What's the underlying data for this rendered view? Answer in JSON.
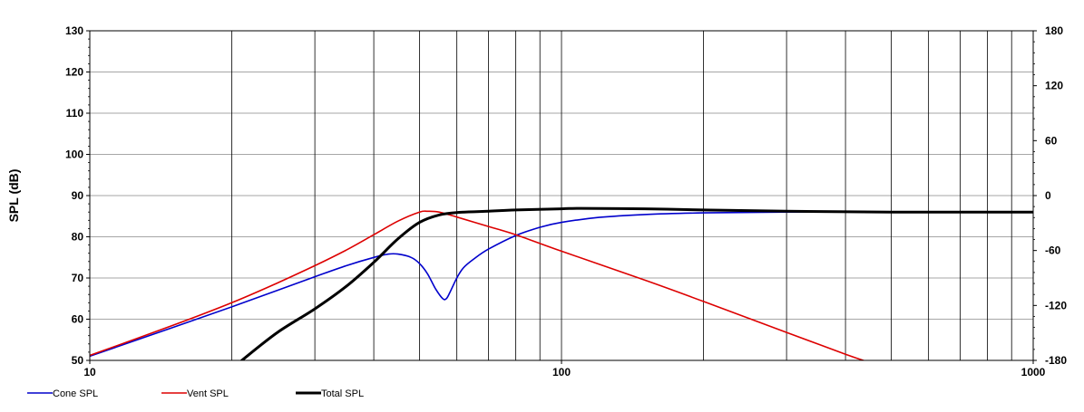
{
  "chart_data": {
    "type": "line",
    "title": "",
    "xlabel": "",
    "ylabel": "SPL (dB)",
    "y2label": "",
    "xscale": "log",
    "xlim": [
      10,
      1000
    ],
    "ylim": [
      50,
      130
    ],
    "y2lim": [
      -180,
      180
    ],
    "grid": true,
    "legend": "bottom-left",
    "x_tick_labels": [
      "10",
      "100",
      "1000"
    ],
    "y_ticks": [
      50,
      60,
      70,
      80,
      90,
      100,
      110,
      120,
      130
    ],
    "y2_ticks": [
      -180,
      -120,
      -60,
      0,
      60,
      120,
      180
    ],
    "series": [
      {
        "name": "Cone SPL",
        "color": "#0000cc",
        "x": [
          10,
          15,
          20,
          25,
          30,
          35,
          40,
          43,
          45,
          48,
          50,
          52,
          54,
          56,
          57,
          58,
          60,
          62,
          65,
          70,
          80,
          90,
          100,
          120,
          150,
          200,
          300,
          500,
          1000
        ],
        "y": [
          51,
          58,
          63,
          67,
          70.3,
          73,
          75,
          75.8,
          75.8,
          75,
          73.5,
          71,
          67.5,
          65,
          65,
          66.5,
          70,
          72.5,
          74.5,
          77,
          80.3,
          82.3,
          83.5,
          84.7,
          85.4,
          85.8,
          86,
          86,
          86
        ]
      },
      {
        "name": "Vent SPL",
        "color": "#dd0000",
        "x": [
          10,
          15,
          20,
          25,
          30,
          35,
          40,
          45,
          50,
          52,
          55,
          60,
          70,
          80,
          100,
          150,
          200,
          300,
          400,
          450
        ],
        "y": [
          51.2,
          58.5,
          64,
          68.8,
          73,
          76.8,
          80.5,
          83.8,
          86,
          86.2,
          86,
          84.8,
          82.5,
          80.5,
          76.5,
          69.5,
          64.3,
          56.8,
          51.5,
          49.5
        ]
      },
      {
        "name": "Total SPL",
        "color": "#000000",
        "x": [
          20,
          21,
          25,
          30,
          35,
          40,
          45,
          50,
          55,
          60,
          70,
          80,
          100,
          110,
          150,
          200,
          300,
          500,
          1000
        ],
        "y": [
          48,
          50,
          56.8,
          62.5,
          68,
          73.8,
          79.5,
          83.5,
          85.3,
          85.9,
          86.2,
          86.5,
          86.8,
          86.9,
          86.8,
          86.5,
          86.2,
          86,
          86
        ]
      }
    ]
  }
}
